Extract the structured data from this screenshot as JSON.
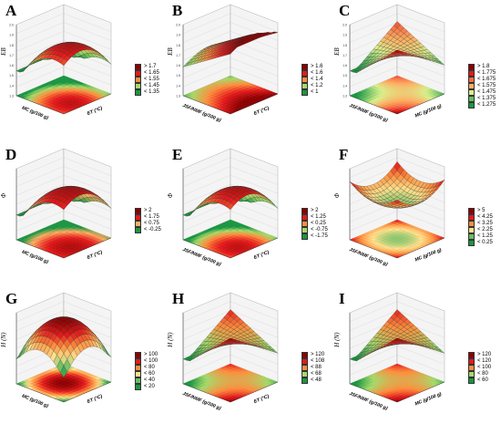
{
  "chart_data": [
    {
      "letter": "A",
      "type": "surface3d",
      "zlabel": "EB",
      "xlabel": "MC (g/100 g)",
      "ylabel": "ET (°C)",
      "zticks": [
        "1.3",
        "1.4",
        "1.5",
        "1.6",
        "1.7",
        "1.8",
        "1.9",
        "2.0"
      ],
      "legend": [
        "> 1.7",
        "< 1.65",
        "< 1.55",
        "< 1.45",
        "< 1.35"
      ],
      "legend_colors": [
        "#8b0000",
        "#e31a1c",
        "#fd8d3c",
        "#a6d96a",
        "#1a9641"
      ],
      "shape": "peak"
    },
    {
      "letter": "B",
      "type": "surface3d",
      "zlabel": "EB",
      "xlabel": "JSF/NMF (g/100 g)",
      "ylabel": "ET (°C)",
      "zticks": [
        "1.3",
        "1.4",
        "1.5",
        "1.6",
        "1.7",
        "1.8",
        "1.9",
        "2.0"
      ],
      "legend": [
        "> 1.6",
        "< 1.6",
        "< 1.4",
        "< 1.2",
        "< 1"
      ],
      "legend_colors": [
        "#8b0000",
        "#e31a1c",
        "#fd8d3c",
        "#a6d96a",
        "#1a9641"
      ],
      "shape": "ramp"
    },
    {
      "letter": "C",
      "type": "surface3d",
      "zlabel": "EB",
      "xlabel": "JSF/NMF (g/100 g)",
      "ylabel": "MC (g/100 g)",
      "zticks": [
        "1.3",
        "1.4",
        "1.5",
        "1.6",
        "1.7",
        "1.8",
        "1.9",
        "2.0"
      ],
      "legend": [
        "> 1.8",
        "< 1.775",
        "< 1.675",
        "< 1.575",
        "< 1.475",
        "< 1.375",
        "< 1.275"
      ],
      "legend_colors": [
        "#8b0000",
        "#e31a1c",
        "#f46d43",
        "#fdae61",
        "#d9ef8b",
        "#66bd63",
        "#1a9641"
      ],
      "shape": "saddle"
    },
    {
      "letter": "D",
      "type": "surface3d",
      "zlabel": "Φ",
      "xlabel": "MC (g/100 g)",
      "ylabel": "ET (°C)",
      "zticks": [],
      "legend": [
        "> 2",
        "< 1.75",
        "< 0.75",
        "< -0.25"
      ],
      "legend_colors": [
        "#8b0000",
        "#e31a1c",
        "#fdae61",
        "#1a9641"
      ],
      "shape": "peak"
    },
    {
      "letter": "E",
      "type": "surface3d",
      "zlabel": "Φ",
      "xlabel": "JSF/NMF (g/100 g)",
      "ylabel": "ET (°C)",
      "zticks": [],
      "legend": [
        "> 2",
        "< 1.25",
        "< 0.25",
        "< -0.75",
        "< -1.75"
      ],
      "legend_colors": [
        "#8b0000",
        "#e31a1c",
        "#fd8d3c",
        "#a6d96a",
        "#1a9641"
      ],
      "shape": "peak"
    },
    {
      "letter": "F",
      "type": "surface3d",
      "zlabel": "Φ",
      "xlabel": "JSF/NMF (g/100 g)",
      "ylabel": "MC (g/100 g)",
      "zticks": [],
      "legend": [
        "> 5",
        "< 4.25",
        "< 3.25",
        "< 2.25",
        "< 1.25",
        "< 0.25"
      ],
      "legend_colors": [
        "#8b0000",
        "#e31a1c",
        "#fd8d3c",
        "#fee08b",
        "#66bd63",
        "#1a9641"
      ],
      "shape": "bowl"
    },
    {
      "letter": "G",
      "type": "surface3d",
      "zlabel": "H (N)",
      "xlabel": "MC (g/100 g)",
      "ylabel": "ET (°C)",
      "zticks": [],
      "legend": [
        "> 100",
        "< 100",
        "< 80",
        "< 60",
        "< 40",
        "< 20"
      ],
      "legend_colors": [
        "#8b0000",
        "#e31a1c",
        "#fd8d3c",
        "#fee08b",
        "#66bd63",
        "#1a9641"
      ],
      "shape": "dome"
    },
    {
      "letter": "H",
      "type": "surface3d",
      "zlabel": "H (N)",
      "xlabel": "JSF/NMF (g/100 g)",
      "ylabel": "ET (°C)",
      "zticks": [],
      "legend": [
        "> 120",
        "< 108",
        "< 88",
        "< 68",
        "< 48"
      ],
      "legend_colors": [
        "#8b0000",
        "#e31a1c",
        "#fd8d3c",
        "#a6d96a",
        "#1a9641"
      ],
      "shape": "saddle"
    },
    {
      "letter": "I",
      "type": "surface3d",
      "zlabel": "H (N)",
      "xlabel": "JSF/NMF (g/100 g)",
      "ylabel": "MC (g/100 g)",
      "zticks": [],
      "legend": [
        "> 120",
        "< 120",
        "< 100",
        "< 80",
        "< 60"
      ],
      "legend_colors": [
        "#8b0000",
        "#e31a1c",
        "#fd8d3c",
        "#a6d96a",
        "#1a9641"
      ],
      "shape": "saddle"
    }
  ]
}
